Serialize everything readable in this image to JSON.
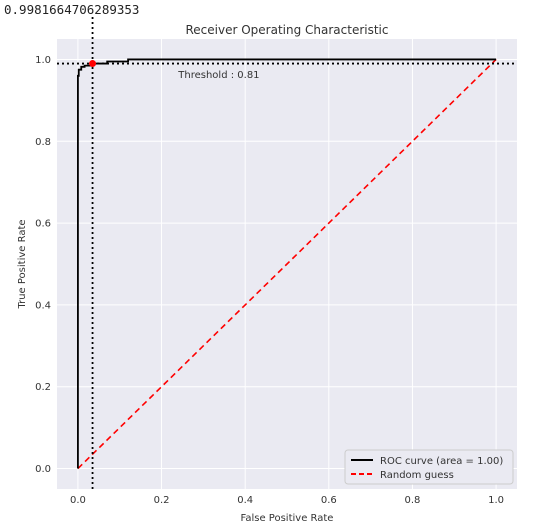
{
  "output_text": "0.9981664706289353",
  "chart_data": {
    "type": "line",
    "title": "Receiver Operating Characteristic",
    "xlabel": "False Positive Rate",
    "ylabel": "True Positive Rate",
    "xlim": [
      -0.05,
      1.05
    ],
    "ylim": [
      -0.05,
      1.05
    ],
    "x_ticks": [
      0.0,
      0.2,
      0.4,
      0.6,
      0.8,
      1.0
    ],
    "y_ticks": [
      0.0,
      0.2,
      0.4,
      0.6,
      0.8,
      1.0
    ],
    "x_tick_labels": [
      "0.0",
      "0.2",
      "0.4",
      "0.6",
      "0.8",
      "1.0"
    ],
    "y_tick_labels": [
      "0.0",
      "0.2",
      "0.4",
      "0.6",
      "0.8",
      "1.0"
    ],
    "grid": true,
    "series": [
      {
        "name": "ROC curve (area = 1.00)",
        "color": "#000000",
        "style": "solid",
        "x": [
          0.0,
          0.0,
          0.002,
          0.002,
          0.008,
          0.008,
          0.016,
          0.016,
          0.03,
          0.03,
          0.07,
          0.07,
          0.12,
          0.12,
          1.0
        ],
        "y": [
          0.0,
          0.96,
          0.96,
          0.975,
          0.975,
          0.982,
          0.982,
          0.985,
          0.985,
          0.99,
          0.99,
          0.995,
          0.995,
          1.0,
          1.0
        ]
      },
      {
        "name": "Random guess",
        "color": "#ff0000",
        "style": "dashed",
        "x": [
          0.0,
          1.0
        ],
        "y": [
          0.0,
          1.0
        ]
      }
    ],
    "threshold_point": {
      "x": 0.035,
      "y": 0.99,
      "color": "#ff0000"
    },
    "vline_x": 0.035,
    "hline_y": 0.99,
    "annotation": {
      "text": "Threshold : 0.81",
      "x": 0.24,
      "y": 0.955
    },
    "legend_position": "lower-right"
  }
}
